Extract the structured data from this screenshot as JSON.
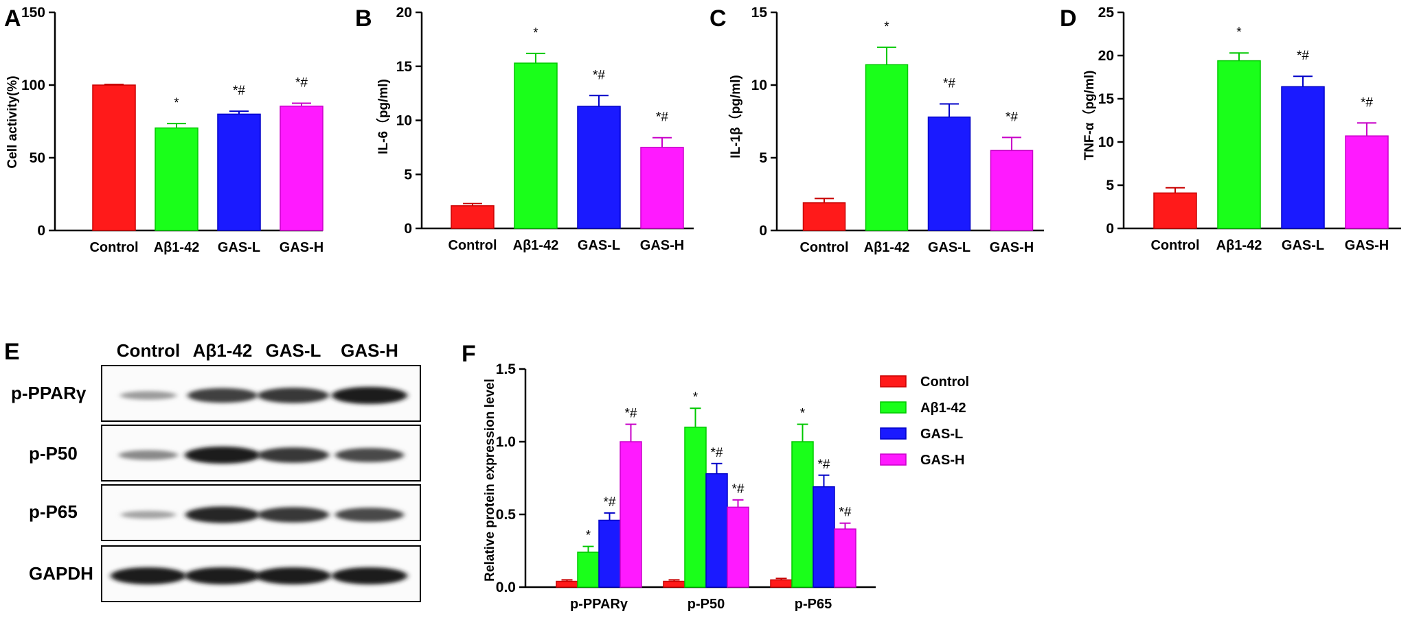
{
  "panels": [
    {
      "letter": "A",
      "type": "bar",
      "ylabel": "Cell activity(%)",
      "ylim": [
        0,
        150
      ],
      "yticks": [
        0,
        50,
        100,
        150
      ],
      "categories": [
        "Control",
        "Aβ1-42",
        "GAS-L",
        "GAS-H"
      ],
      "values": [
        100,
        70.5,
        80,
        85.5
      ],
      "errors": [
        0.5,
        3,
        2,
        2
      ],
      "marks": [
        "",
        "*",
        "*#",
        "*#"
      ]
    },
    {
      "letter": "B",
      "type": "bar",
      "ylabel": "IL-6（pg/ml)",
      "ylim": [
        0,
        20
      ],
      "yticks": [
        0,
        5,
        10,
        15,
        20
      ],
      "categories": [
        "Control",
        "Aβ1-42",
        "GAS-L",
        "GAS-H"
      ],
      "values": [
        2.1,
        15.3,
        11.3,
        7.5
      ],
      "errors": [
        0.2,
        0.9,
        1.0,
        0.9
      ],
      "marks": [
        "",
        "*",
        "*#",
        "*#"
      ]
    },
    {
      "letter": "C",
      "type": "bar",
      "ylabel": "IL-1β（pg/ml)",
      "ylim": [
        0,
        15
      ],
      "yticks": [
        0,
        5,
        10,
        15
      ],
      "categories": [
        "Control",
        "Aβ1-42",
        "GAS-L",
        "GAS-H"
      ],
      "values": [
        1.9,
        11.4,
        7.8,
        5.5
      ],
      "errors": [
        0.3,
        1.2,
        0.9,
        0.9
      ],
      "marks": [
        "",
        "*",
        "*#",
        "*#"
      ]
    },
    {
      "letter": "D",
      "type": "bar",
      "ylabel": "TNF-α（pg/ml)",
      "ylim": [
        0,
        25
      ],
      "yticks": [
        0,
        5,
        10,
        15,
        20,
        25
      ],
      "categories": [
        "Control",
        "Aβ1-42",
        "GAS-L",
        "GAS-H"
      ],
      "values": [
        4.1,
        19.4,
        16.4,
        10.7
      ],
      "errors": [
        0.6,
        0.9,
        1.2,
        1.5
      ],
      "marks": [
        "",
        "*",
        "*#",
        "*#"
      ]
    }
  ],
  "colors": [
    "#ff1a1a",
    "#1aff1a",
    "#1a1aff",
    "#ff1aff"
  ],
  "blot": {
    "letter": "E",
    "columns": [
      "Control",
      "Aβ1-42",
      "GAS-L",
      "GAS-H"
    ],
    "rows": [
      {
        "label": "p-PPARγ",
        "intensity": [
          0.25,
          0.75,
          0.8,
          0.95
        ]
      },
      {
        "label": "p-P50",
        "intensity": [
          0.35,
          0.95,
          0.8,
          0.7
        ]
      },
      {
        "label": "p-P65",
        "intensity": [
          0.2,
          0.9,
          0.8,
          0.7
        ]
      },
      {
        "label": "GAPDH",
        "intensity": [
          0.95,
          0.95,
          0.95,
          0.95
        ]
      }
    ]
  },
  "chart_data": {
    "type": "bar",
    "letter": "F",
    "ylabel": "Relative protein expression level",
    "ylim": [
      0,
      1.5
    ],
    "yticks": [
      "0.0",
      "0.5",
      "1.0",
      "1.5"
    ],
    "categories": [
      "p-PPARγ",
      "p-P50",
      "p-P65"
    ],
    "legend_position": "top-right",
    "series": [
      {
        "name": "Control",
        "values": [
          0.04,
          0.04,
          0.05
        ],
        "errors": [
          0.01,
          0.01,
          0.01
        ],
        "marks": [
          "",
          "",
          ""
        ]
      },
      {
        "name": "Aβ1-42",
        "values": [
          0.24,
          1.1,
          1.0
        ],
        "errors": [
          0.04,
          0.13,
          0.12
        ],
        "marks": [
          "*",
          "*",
          "*"
        ]
      },
      {
        "name": "GAS-L",
        "values": [
          0.46,
          0.78,
          0.69
        ],
        "errors": [
          0.05,
          0.07,
          0.08
        ],
        "marks": [
          "*#",
          "*#",
          "*#"
        ]
      },
      {
        "name": "GAS-H",
        "values": [
          1.0,
          0.55,
          0.4
        ],
        "errors": [
          0.12,
          0.05,
          0.04
        ],
        "marks": [
          "*#",
          "*#",
          "*#"
        ]
      }
    ]
  }
}
